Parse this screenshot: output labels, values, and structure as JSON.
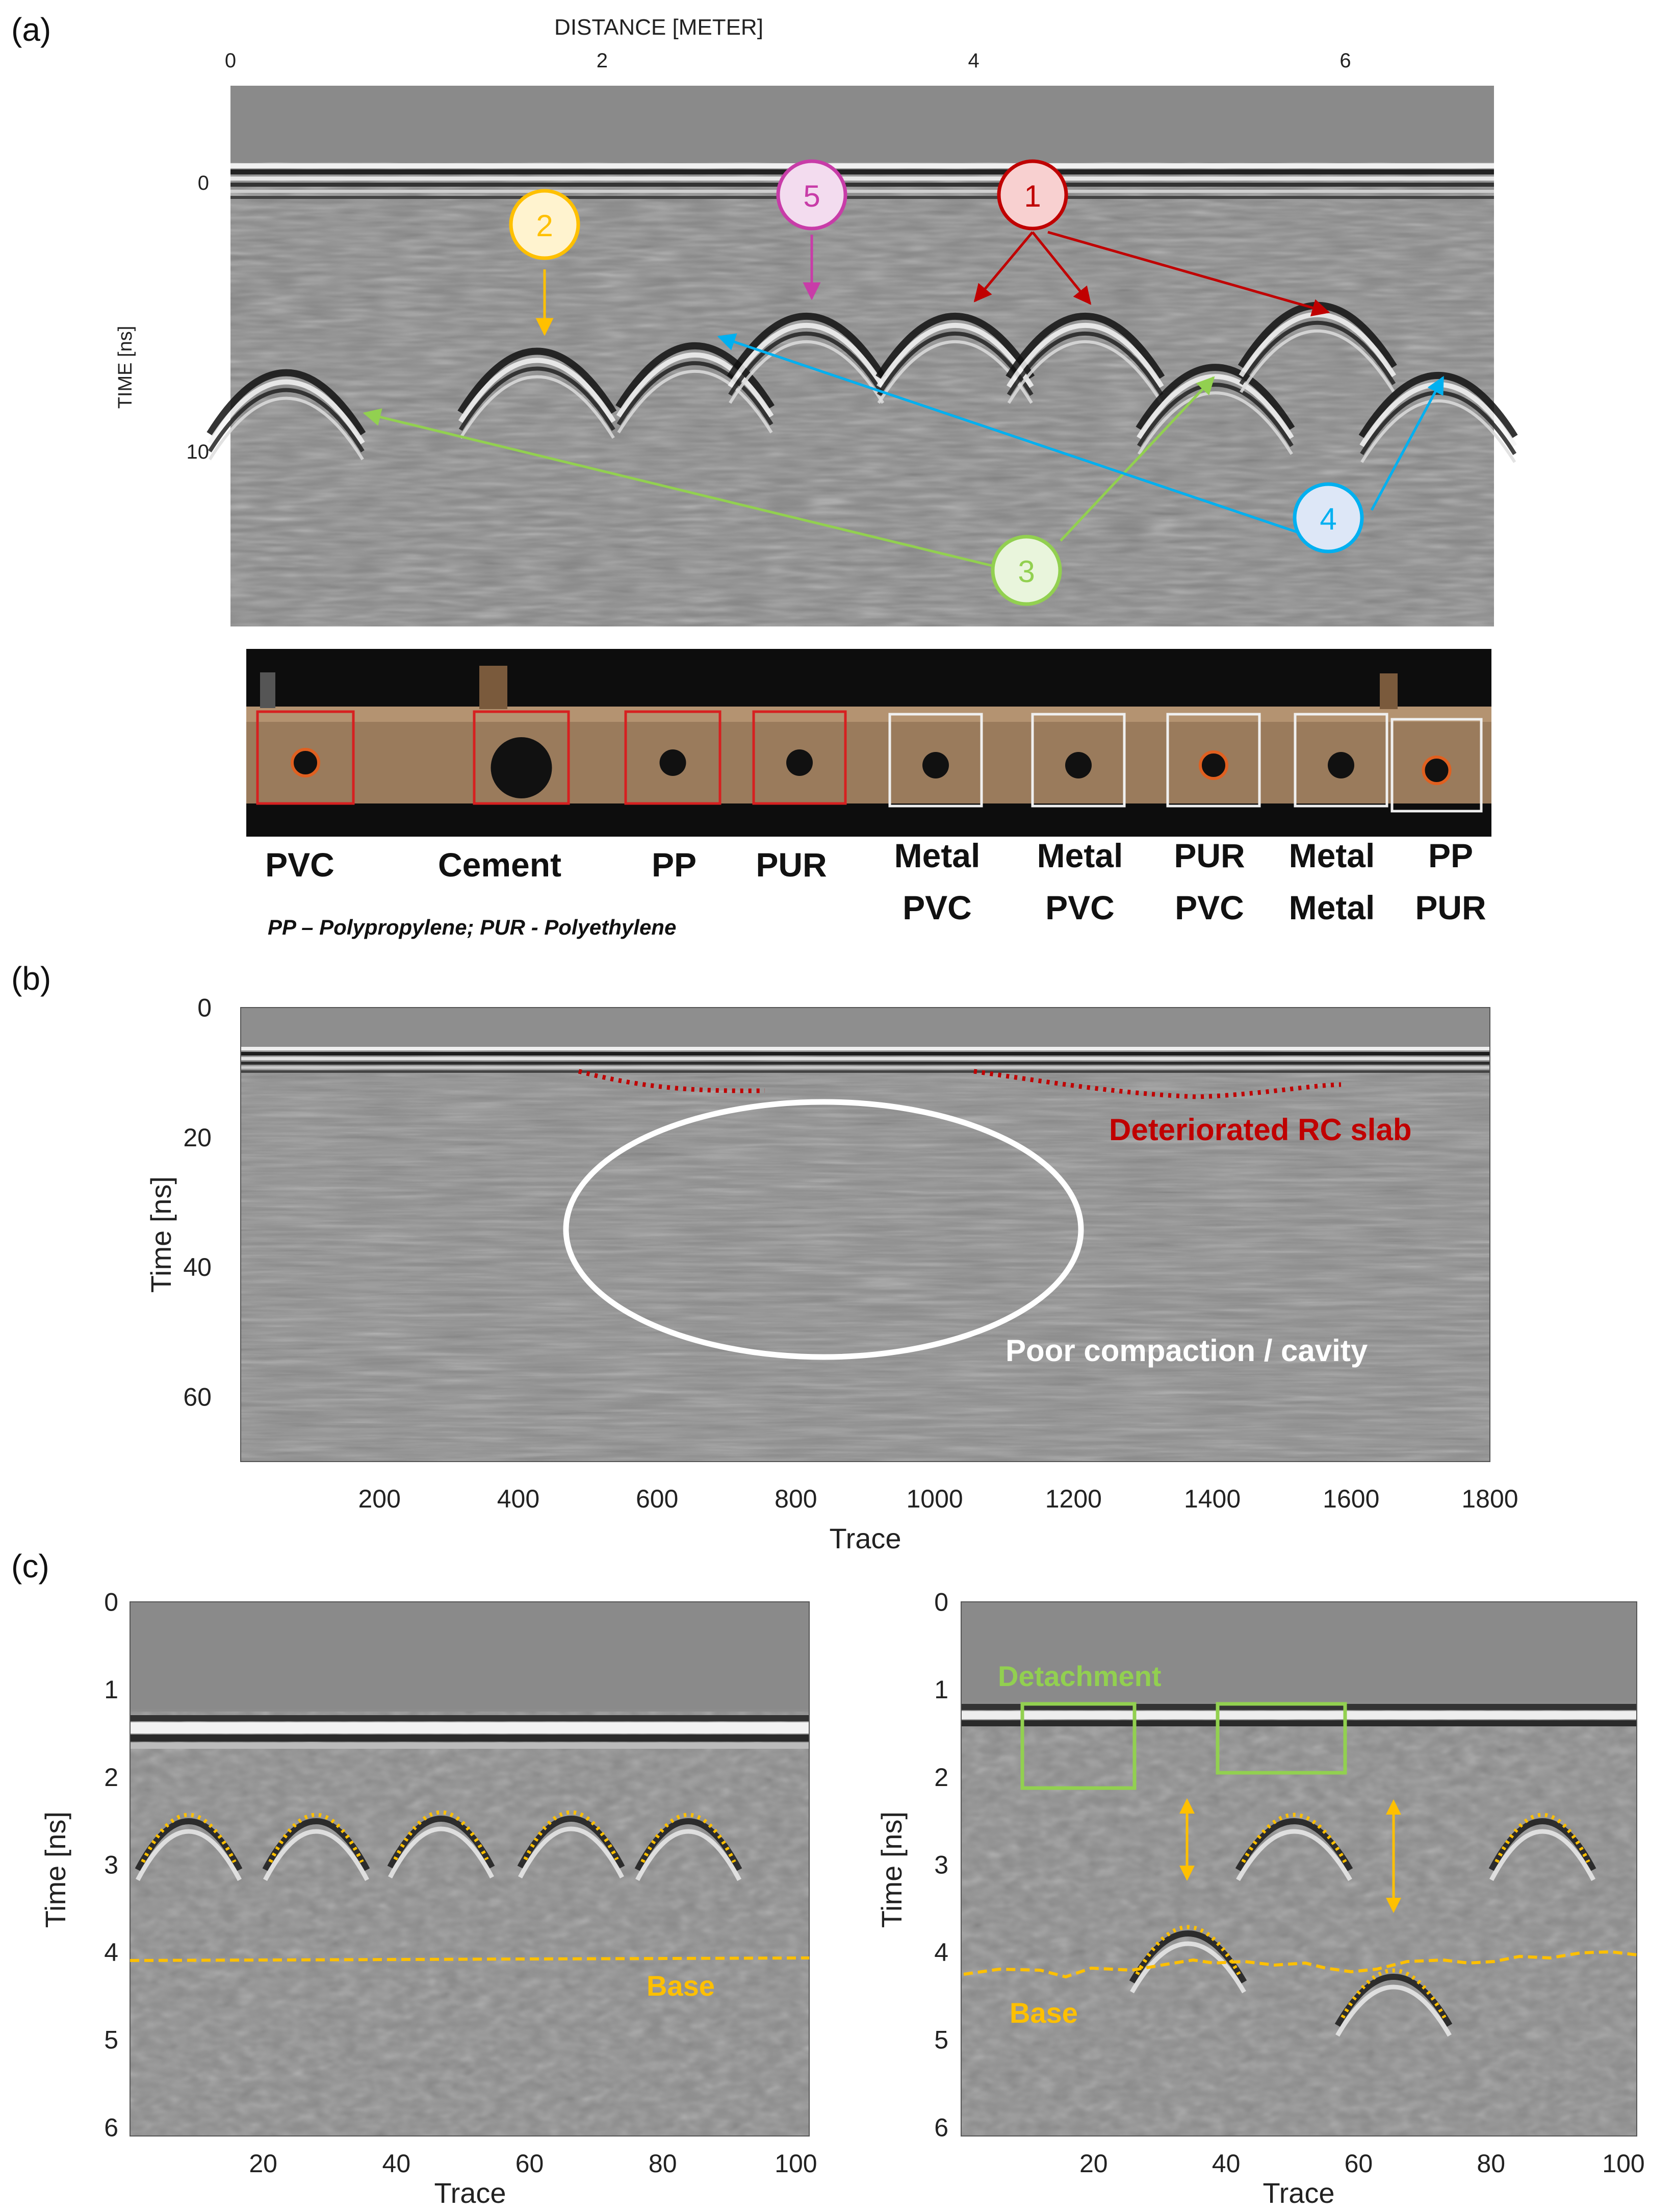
{
  "panel_a": {
    "label": "(a)",
    "chart_data": {
      "type": "radargram",
      "xlabel": "DISTANCE [METER]",
      "ylabel": "TIME [ns]",
      "x_ticks": [
        "0",
        "2",
        "4",
        "6"
      ],
      "y_ticks": [
        "0",
        "10"
      ],
      "xlim": [
        0,
        6.8
      ],
      "ylim": [
        -3.6,
        16.5
      ],
      "hyperbola_apex_distance_m": [
        0.3,
        1.65,
        2.5,
        3.1,
        3.9,
        4.6,
        5.3,
        5.85,
        6.5
      ],
      "hyperbola_apex_time_ns": [
        6.5,
        5.7,
        5.5,
        4.4,
        4.4,
        4.4,
        6.3,
        4.0,
        6.6
      ]
    },
    "callouts": [
      {
        "num": "1",
        "color": "#c00000"
      },
      {
        "num": "2",
        "color": "#ffc000"
      },
      {
        "num": "3",
        "color": "#92d050"
      },
      {
        "num": "4",
        "color": "#00b0f0"
      },
      {
        "num": "5",
        "color": "#c83ca8"
      }
    ],
    "materials": [
      {
        "line1": "PVC",
        "line2": ""
      },
      {
        "line1": "Cement",
        "line2": ""
      },
      {
        "line1": "PP",
        "line2": ""
      },
      {
        "line1": "PUR",
        "line2": ""
      },
      {
        "line1": "Metal",
        "line2": "PVC"
      },
      {
        "line1": "Metal",
        "line2": "PVC"
      },
      {
        "line1": "PUR",
        "line2": "PVC"
      },
      {
        "line1": "Metal",
        "line2": "Metal"
      },
      {
        "line1": "PP",
        "line2": "PUR"
      }
    ],
    "footnote": "PP – Polypropylene; PUR - Polyethylene"
  },
  "panel_b": {
    "label": "(b)",
    "chart_data": {
      "type": "radargram",
      "xlabel": "Trace",
      "ylabel": "Time [ns]",
      "x_ticks": [
        "200",
        "400",
        "600",
        "800",
        "1000",
        "1200",
        "1400",
        "1600",
        "1800"
      ],
      "y_ticks": [
        "0",
        "20",
        "40",
        "60"
      ],
      "xlim": [
        0,
        1800
      ],
      "ylim": [
        0,
        70
      ]
    },
    "annotations": {
      "deteriorated": "Deteriorated RC slab",
      "cavity": "Poor compaction / cavity"
    },
    "colors": {
      "deteriorated": "#c00000",
      "cavity": "#ffffff"
    }
  },
  "panel_c": {
    "label": "(c)",
    "left": {
      "chart_data": {
        "type": "radargram",
        "xlabel": "Trace",
        "ylabel": "Time [ns]",
        "x_ticks": [
          "20",
          "40",
          "60",
          "80",
          "100"
        ],
        "y_ticks": [
          "0",
          "1",
          "2",
          "3",
          "4",
          "5",
          "6"
        ],
        "xlim": [
          0,
          102
        ],
        "ylim": [
          0,
          6.1
        ],
        "base_level_ns": 4.1
      },
      "base_label": "Base"
    },
    "right": {
      "chart_data": {
        "type": "radargram",
        "xlabel": "Trace",
        "ylabel": "Time [ns]",
        "x_ticks": [
          "20",
          "40",
          "60",
          "80",
          "100"
        ],
        "y_ticks": [
          "0",
          "1",
          "2",
          "3",
          "4",
          "5",
          "6"
        ],
        "xlim": [
          0,
          102
        ],
        "ylim": [
          0,
          6.1
        ]
      },
      "base_label": "Base",
      "detachment_label": "Detachment"
    },
    "colors": {
      "base": "#ffc000",
      "detachment": "#92d050"
    }
  }
}
